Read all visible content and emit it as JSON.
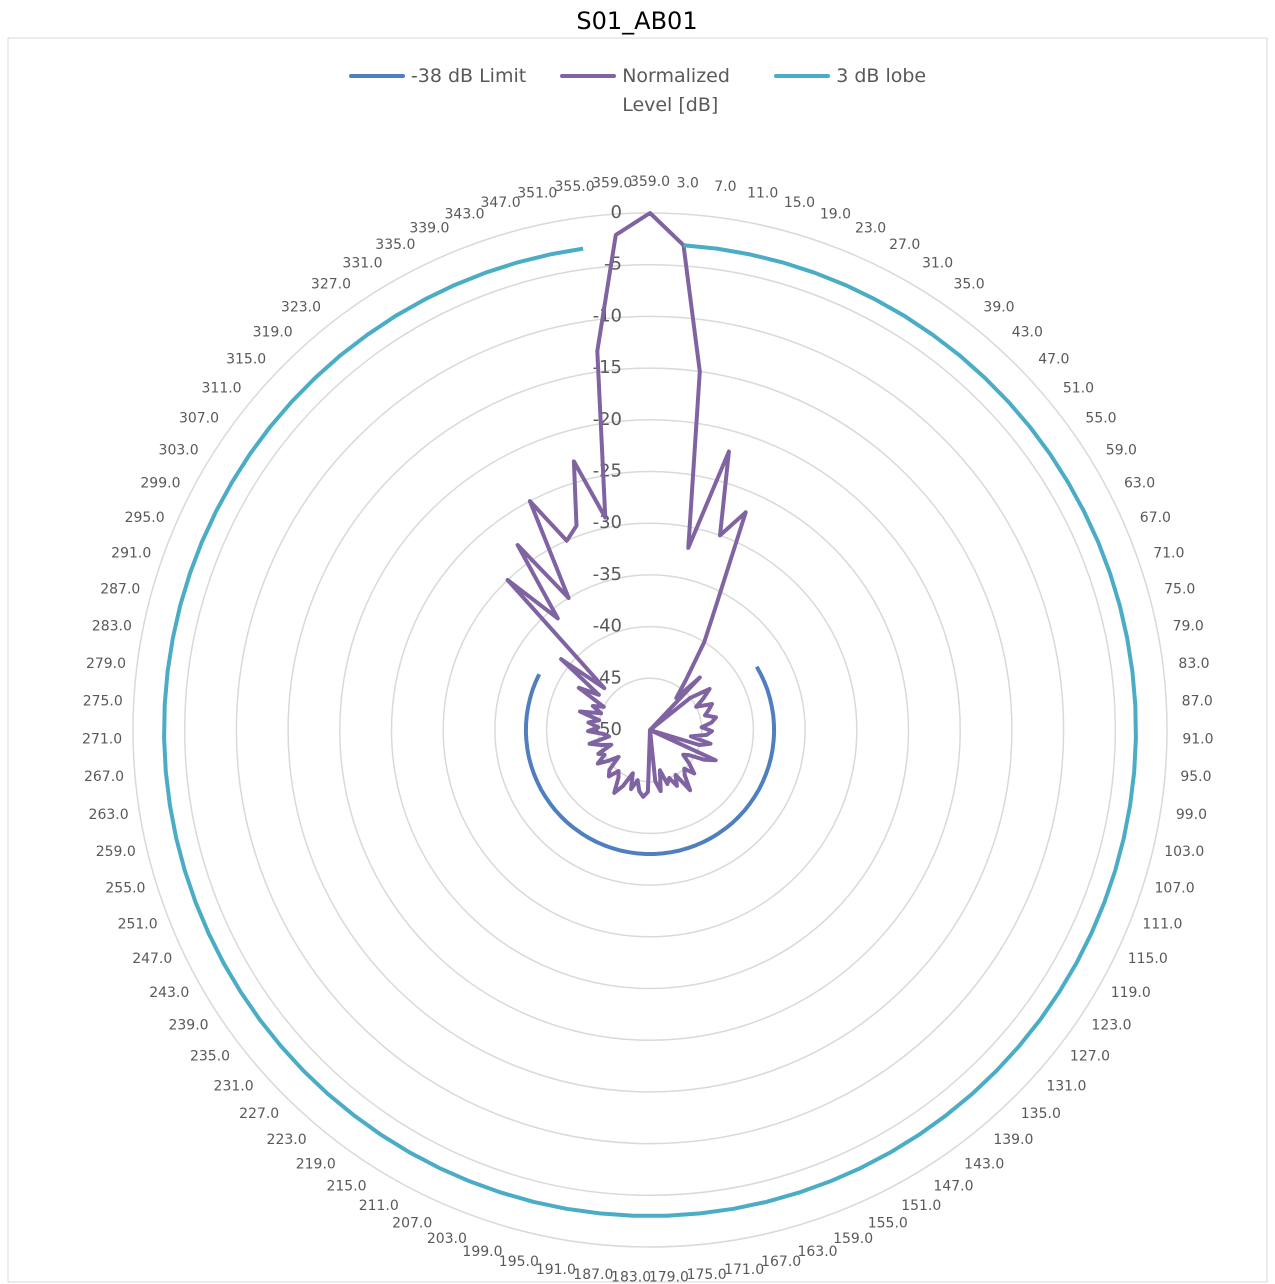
{
  "chart_data": {
    "type": "radar",
    "title": "S01_AB01",
    "categories": [
      "359.0",
      "3.0",
      "7.0",
      "11.0",
      "15.0",
      "19.0",
      "23.0",
      "27.0",
      "31.0",
      "35.0",
      "39.0",
      "43.0",
      "47.0",
      "51.0",
      "55.0",
      "59.0",
      "63.0",
      "67.0",
      "71.0",
      "75.0",
      "79.0",
      "83.0",
      "87.0",
      "91.0",
      "95.0",
      "99.0",
      "103.0",
      "107.0",
      "111.0",
      "115.0",
      "119.0",
      "123.0",
      "127.0",
      "131.0",
      "135.0",
      "139.0",
      "143.0",
      "147.0",
      "151.0",
      "155.0",
      "159.0",
      "163.0",
      "167.0",
      "171.0",
      "175.0",
      "179.0",
      "183.0",
      "187.0",
      "191.0",
      "195.0",
      "199.0",
      "203.0",
      "207.0",
      "211.0",
      "215.0",
      "219.0",
      "223.0",
      "227.0",
      "231.0",
      "235.0",
      "239.0",
      "243.0",
      "247.0",
      "251.0",
      "255.0",
      "259.0",
      "263.0",
      "267.0",
      "271.0",
      "275.0",
      "279.0",
      "283.0",
      "287.0",
      "291.0",
      "295.0",
      "299.0",
      "303.0",
      "307.0",
      "311.0",
      "315.0",
      "319.0",
      "323.0",
      "327.0",
      "331.0",
      "335.0",
      "339.0",
      "343.0",
      "347.0",
      "351.0",
      "355.0",
      "359.0"
    ],
    "series": [
      {
        "name": "-38 dB Limit",
        "color": "#4f7fbf",
        "values": [
          null,
          null,
          null,
          null,
          null,
          null,
          null,
          null,
          null,
          null,
          null,
          null,
          null,
          null,
          null,
          -38,
          -38,
          -38,
          -38,
          -38,
          -38,
          -38,
          -38,
          -38,
          -38,
          -38,
          -38,
          -38,
          -38,
          -38,
          -38,
          -38,
          -38,
          -38,
          -38,
          -38,
          -38,
          -38,
          -38,
          -38,
          -38,
          -38,
          -38,
          -38,
          -38,
          -38,
          -38,
          -38,
          -38,
          -38,
          -38,
          -38,
          -38,
          -38,
          -38,
          -38,
          -38,
          -38,
          -38,
          -38,
          -38,
          -38,
          -38,
          -38,
          -38,
          -38,
          -38,
          -38,
          -38,
          -38,
          -38,
          -38,
          -38,
          -38,
          -38,
          -38,
          null,
          null,
          null,
          null,
          null,
          null,
          null,
          null,
          null,
          null,
          null,
          null,
          null,
          null,
          null
        ]
      },
      {
        "name": "Normalized Level [dB]",
        "color": "#8064a2",
        "values": [
          0,
          -3,
          -15,
          -32,
          -22,
          -30,
          -27,
          -36,
          -40,
          -44,
          -46,
          -43,
          -50,
          -45,
          -43,
          -44,
          -45,
          -43.5,
          -44,
          -44.5,
          -43.5,
          -44,
          -45,
          -44,
          -44.5,
          -46,
          -44,
          -45,
          -50,
          -43,
          -44,
          -45.5,
          -46,
          -45,
          -44,
          -45,
          -44.5,
          -43,
          -45,
          -44,
          -45,
          -44.5,
          -46,
          -44,
          -45,
          -50,
          -44,
          -43.5,
          -44,
          -45,
          -44,
          -45.5,
          -44,
          -43,
          -44.5,
          -45,
          -44,
          -44.5,
          -46,
          -45,
          -44,
          -45,
          -44.5,
          -46,
          -45,
          -44,
          -46,
          -45.5,
          -44,
          -45,
          -44,
          -45,
          -43,
          -45,
          -44,
          -45,
          -42,
          -44,
          -39,
          -44,
          -30,
          -36,
          -28,
          -35,
          -25,
          -30,
          -29,
          -23,
          -29,
          -13,
          -2
        ]
      },
      {
        "name": "3 dB lobe",
        "color": "#4bacc6",
        "values": [
          null,
          -3,
          -3,
          -3,
          -3,
          -3,
          -3,
          -3,
          -3,
          -3,
          -3,
          -3,
          -3,
          -3,
          -3,
          -3,
          -3,
          -3,
          -3,
          -3,
          -3,
          -3,
          -3,
          -3,
          -3,
          -3,
          -3,
          -3,
          -3,
          -3,
          -3,
          -3,
          -3,
          -3,
          -3,
          -3,
          -3,
          -3,
          -3,
          -3,
          -3,
          -3,
          -3,
          -3,
          -3,
          -3,
          -3,
          -3,
          -3,
          -3,
          -3,
          -3,
          -3,
          -3,
          -3,
          -3,
          -3,
          -3,
          -3,
          -3,
          -3,
          -3,
          -3,
          -3,
          -3,
          -3,
          -3,
          -3,
          -3,
          -3,
          -3,
          -3,
          -3,
          -3,
          -3,
          -3,
          -3,
          -3,
          -3,
          -3,
          -3,
          -3,
          -3,
          -3,
          -3,
          -3,
          -3,
          -3,
          -3,
          -3,
          null
        ]
      }
    ],
    "ylim": [
      -50,
      0
    ],
    "yticks": [
      0,
      -5,
      -10,
      -15,
      -20,
      -25,
      -30,
      -35,
      -40,
      -45,
      -50
    ],
    "grid": true
  }
}
